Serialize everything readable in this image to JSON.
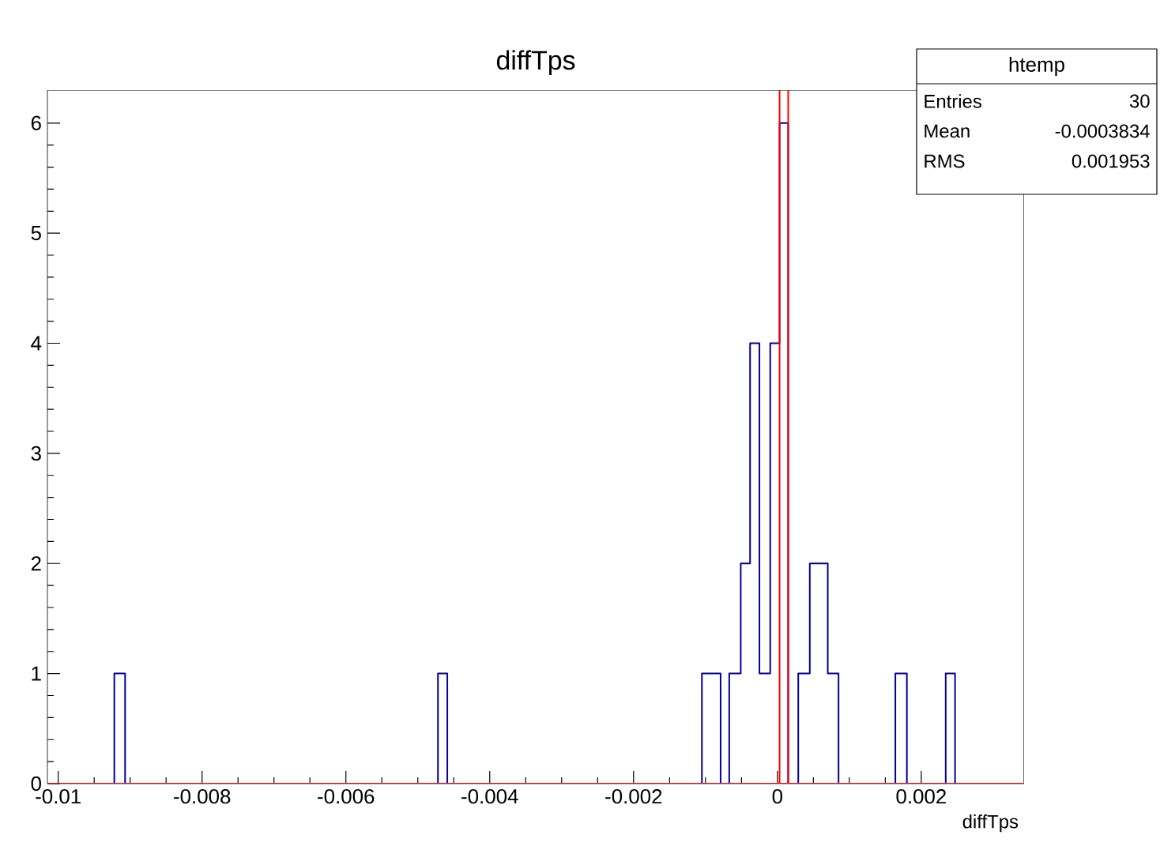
{
  "chart_data": {
    "type": "histogram",
    "title": "diffTps",
    "xlabel": "diffTps",
    "bins": [
      -0.00922,
      -0.00907,
      -0.00472,
      -0.00459,
      -0.00105,
      -0.00079,
      -0.00067,
      -0.00051,
      -0.00038,
      -0.00025,
      -0.0001,
      3e-05,
      0.00015,
      0.00029,
      0.00045,
      0.0007,
      0.00085,
      0.00164,
      0.0018,
      0.00234,
      0.00247
    ],
    "values": [
      1,
      0,
      1,
      0,
      1,
      0,
      1,
      2,
      4,
      1,
      4,
      6,
      0,
      1,
      2,
      1,
      0,
      1,
      0,
      1
    ],
    "color": "#000099",
    "xlim": [
      -0.01015,
      0.00343
    ],
    "xticks": [
      -0.01,
      -0.008,
      -0.006,
      -0.004,
      -0.002,
      0,
      0.002
    ],
    "ylim": [
      0,
      6.3
    ],
    "yticks": [
      0,
      1,
      2,
      3,
      4,
      5,
      6
    ],
    "ref_lines": [
      {
        "axis": "x",
        "value": 3e-05,
        "color": "#ff0000"
      },
      {
        "axis": "x",
        "value": 0.00015,
        "color": "#ff0000"
      },
      {
        "axis": "y",
        "value": 0,
        "color": "#ff0000"
      }
    ],
    "annotations": [
      "htemp",
      "Entries",
      "30",
      "Mean",
      "-0.0003834",
      "RMS",
      "0.001953"
    ]
  }
}
